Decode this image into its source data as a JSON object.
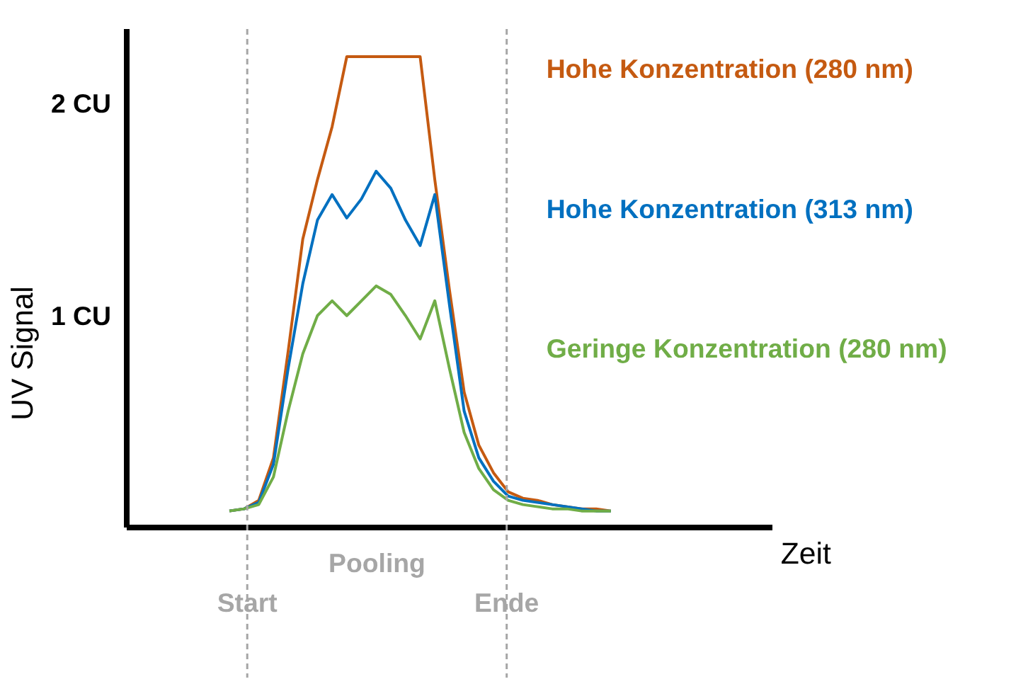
{
  "chart_data": {
    "type": "line",
    "ylabel": "UV Signal",
    "categories": [
      null,
      null,
      null,
      null,
      null,
      null,
      null,
      null,
      null,
      null,
      null,
      null,
      null,
      null,
      null,
      null,
      null,
      null,
      null,
      null,
      null,
      null,
      null,
      null,
      null,
      null,
      null
    ],
    "ylim": [
      0,
      2.35
    ],
    "yticks": [
      {
        "value": 1,
        "label": "1 CU"
      },
      {
        "value": 2,
        "label": "2 CU"
      }
    ],
    "tick_labels": "y",
    "grid": false,
    "legend": false,
    "marker": "none",
    "series": [
      {
        "name": "Hohe Konzentration (280 nm)",
        "color": "#c55a11",
        "line_style": "solid",
        "values": [
          0.08,
          0.09,
          0.13,
          0.33,
          0.83,
          1.36,
          1.64,
          1.89,
          2.22,
          2.22,
          2.22,
          2.22,
          2.22,
          2.22,
          1.64,
          1.12,
          0.64,
          0.39,
          0.26,
          0.17,
          0.14,
          0.13,
          0.11,
          0.1,
          0.09,
          0.09,
          0.08
        ]
      },
      {
        "name": "Hohe Konzentration (313 nm)",
        "color": "#0070c0",
        "line_style": "solid",
        "values": [
          0.08,
          0.09,
          0.12,
          0.3,
          0.75,
          1.15,
          1.45,
          1.57,
          1.46,
          1.55,
          1.68,
          1.6,
          1.45,
          1.33,
          1.57,
          1.05,
          0.55,
          0.33,
          0.22,
          0.15,
          0.13,
          0.12,
          0.11,
          0.1,
          0.09,
          0.08,
          0.08
        ]
      },
      {
        "name": "Geringe Konzentration (280 nm)",
        "color": "#70ad47",
        "line_style": "solid",
        "values": [
          0.08,
          0.09,
          0.11,
          0.24,
          0.55,
          0.82,
          1.0,
          1.07,
          1.0,
          1.07,
          1.14,
          1.1,
          1.0,
          0.89,
          1.07,
          0.75,
          0.45,
          0.28,
          0.18,
          0.13,
          0.11,
          0.1,
          0.09,
          0.09,
          0.08,
          0.08,
          0.08
        ]
      }
    ],
    "annotations": [
      "Start",
      "Pooling",
      "Ende",
      "Zeit"
    ]
  }
}
